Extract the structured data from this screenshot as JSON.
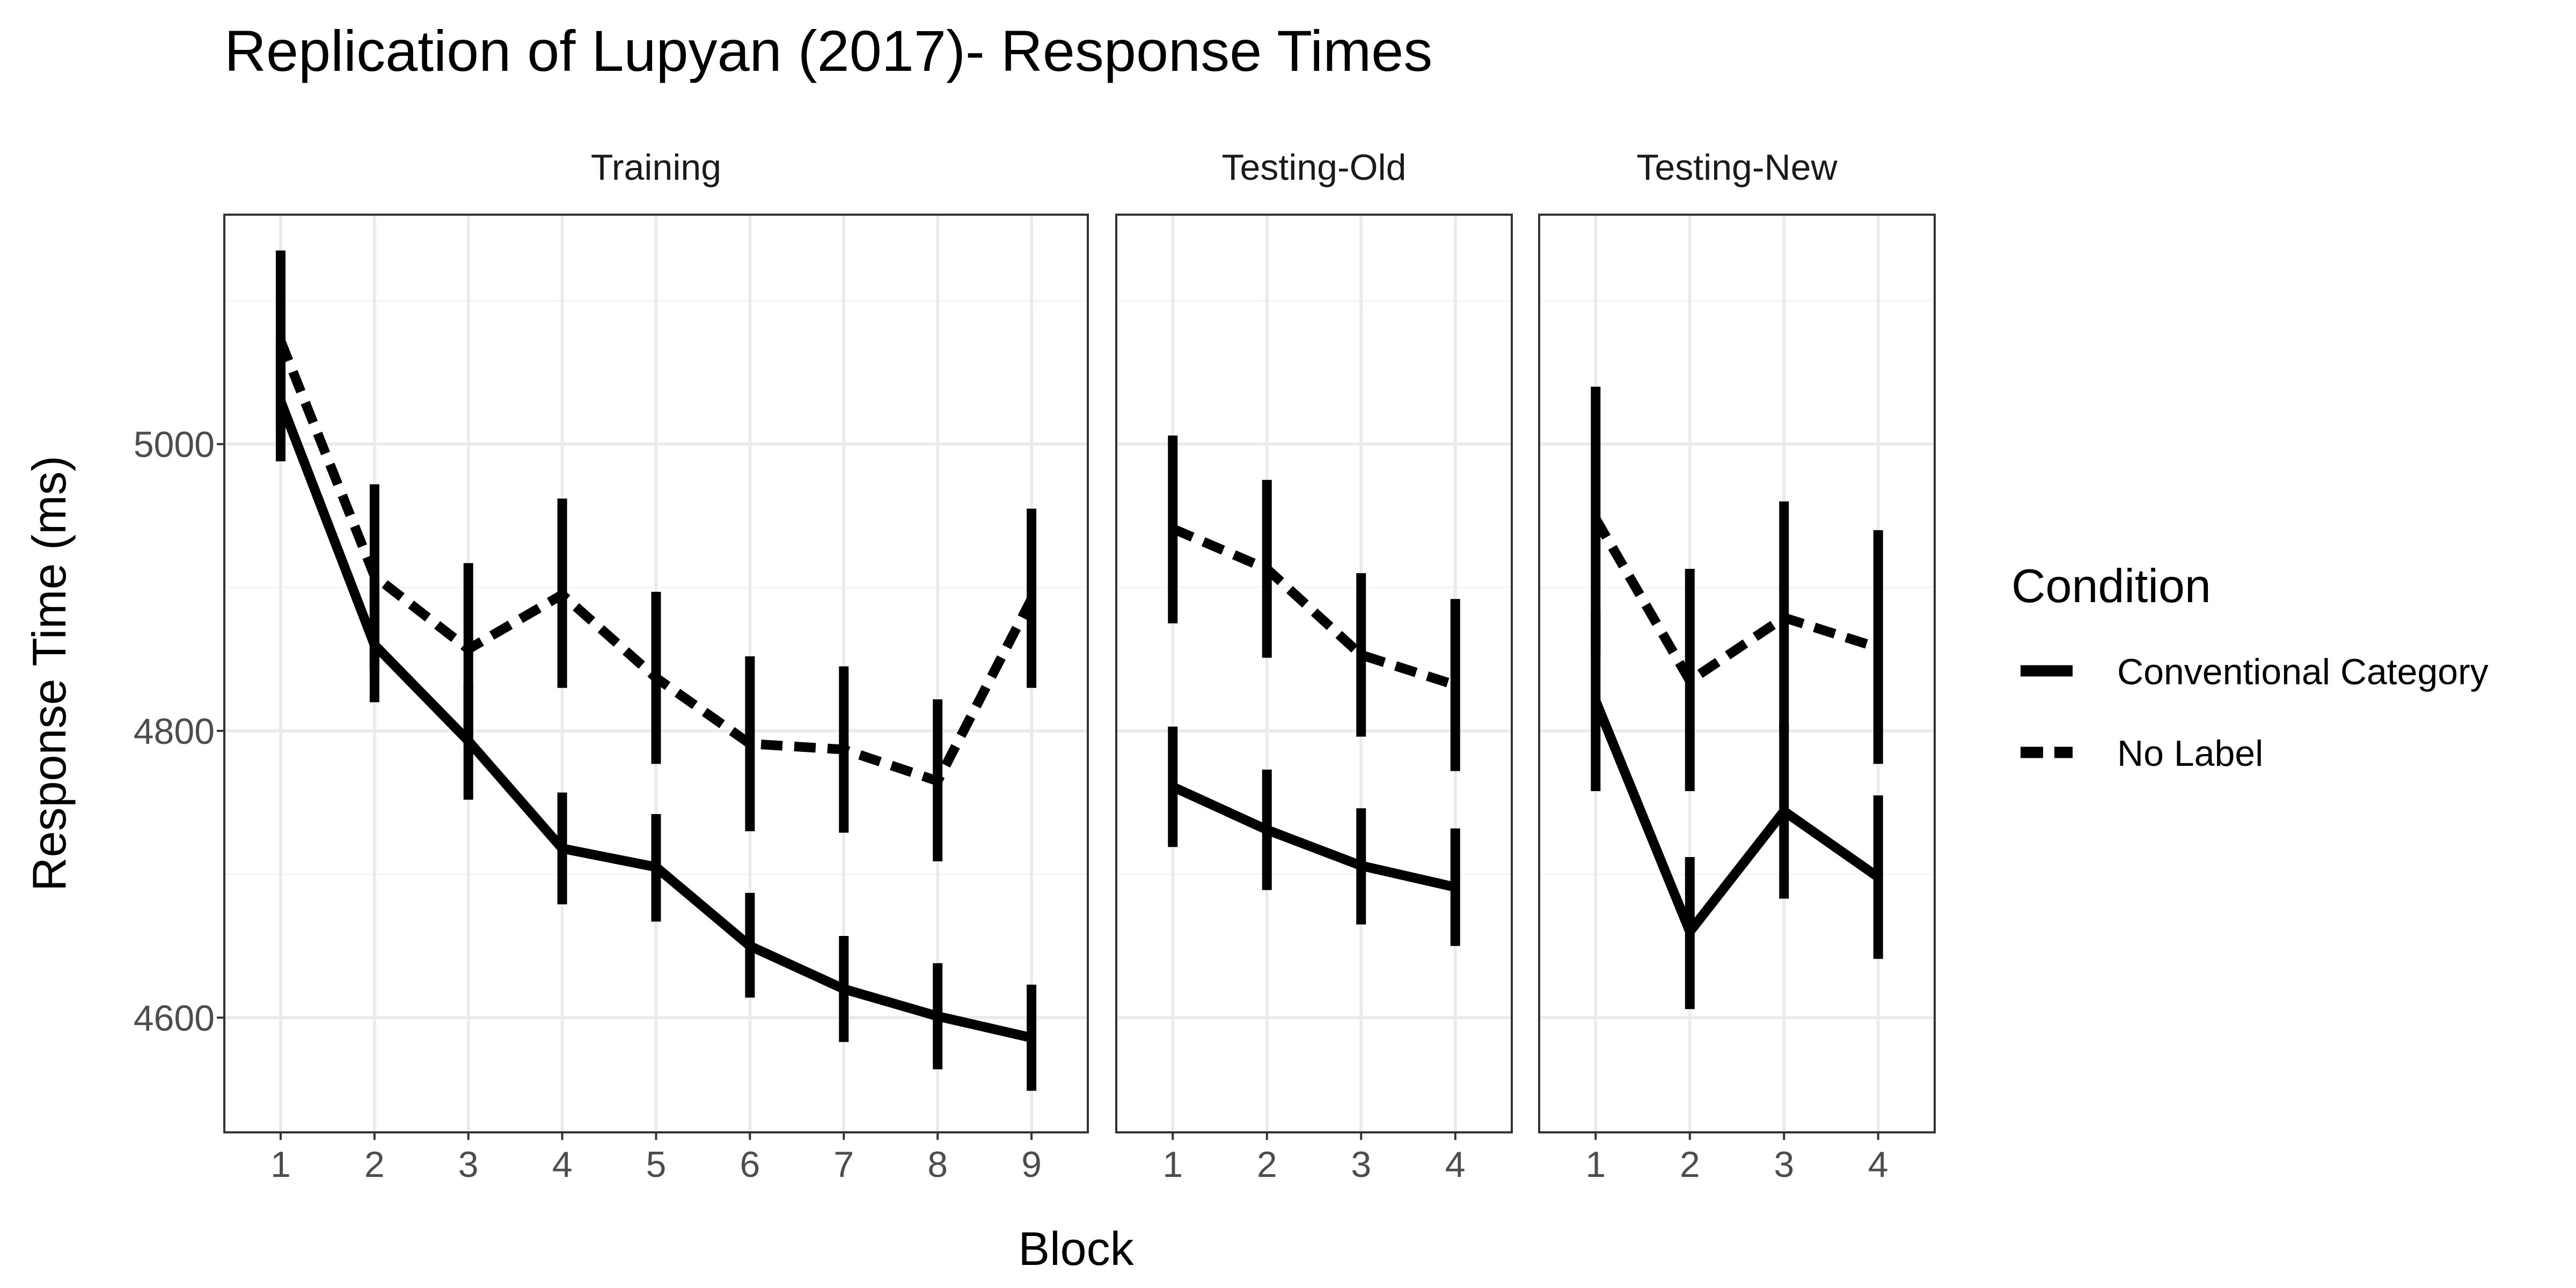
{
  "chart_data": {
    "type": "line",
    "title": "Replication of Lupyan (2017)- Response Times",
    "xlabel": "Block",
    "ylabel": "Response Time (ms)",
    "ylim": [
      4520,
      5160
    ],
    "yticks": [
      4600,
      4800,
      5000
    ],
    "grid": true,
    "legend": {
      "title": "Condition",
      "position": "right",
      "entries": [
        {
          "name": "Conventional Category",
          "linetype": "solid"
        },
        {
          "name": "No Label",
          "linetype": "dashed"
        }
      ]
    },
    "line_color": "#000000",
    "panels": [
      {
        "name": "Training",
        "x": [
          1,
          2,
          3,
          4,
          5,
          6,
          7,
          8,
          9
        ],
        "series": [
          {
            "name": "Conventional Category",
            "linetype": "solid",
            "values": [
              5030,
              4860,
              4793,
              4718,
              4705,
              4650,
              4620,
              4601,
              4586
            ],
            "lower": [
              4988,
              4820,
              4752,
              4679,
              4667,
              4614,
              4583,
              4564,
              4549
            ],
            "upper": [
              5075,
              4907,
              4834,
              4757,
              4742,
              4687,
              4657,
              4638,
              4623
            ]
          },
          {
            "name": "No Label",
            "linetype": "dashed",
            "values": [
              5072,
              4908,
              4857,
              4895,
              4837,
              4791,
              4787,
              4765,
              4892
            ],
            "lower": [
              5009,
              4843,
              4797,
              4830,
              4777,
              4730,
              4729,
              4709,
              4830
            ],
            "upper": [
              5135,
              4972,
              4917,
              4962,
              4897,
              4852,
              4845,
              4822,
              4955
            ]
          }
        ]
      },
      {
        "name": "Testing-Old",
        "x": [
          1,
          2,
          3,
          4
        ],
        "series": [
          {
            "name": "Conventional Category",
            "linetype": "solid",
            "values": [
              4761,
              4731,
              4706,
              4691
            ],
            "lower": [
              4719,
              4689,
              4665,
              4650
            ],
            "upper": [
              4803,
              4773,
              4746,
              4732
            ]
          },
          {
            "name": "No Label",
            "linetype": "dashed",
            "values": [
              4941,
              4913,
              4853,
              4832
            ],
            "lower": [
              4875,
              4851,
              4796,
              4772
            ],
            "upper": [
              5006,
              4975,
              4910,
              4892
            ]
          }
        ]
      },
      {
        "name": "Testing-New",
        "x": [
          1,
          2,
          3,
          4
        ],
        "series": [
          {
            "name": "Conventional Category",
            "linetype": "solid",
            "values": [
              4821,
              4660,
              4744,
              4698
            ],
            "lower": [
              4758,
              4606,
              4683,
              4641
            ],
            "upper": [
              4884,
              4712,
              4805,
              4755
            ]
          },
          {
            "name": "No Label",
            "linetype": "dashed",
            "values": [
              4948,
              4835,
              4879,
              4858
            ],
            "lower": [
              4853,
              4758,
              4800,
              4777
            ],
            "upper": [
              5040,
              4913,
              4960,
              4940
            ]
          }
        ]
      }
    ]
  }
}
